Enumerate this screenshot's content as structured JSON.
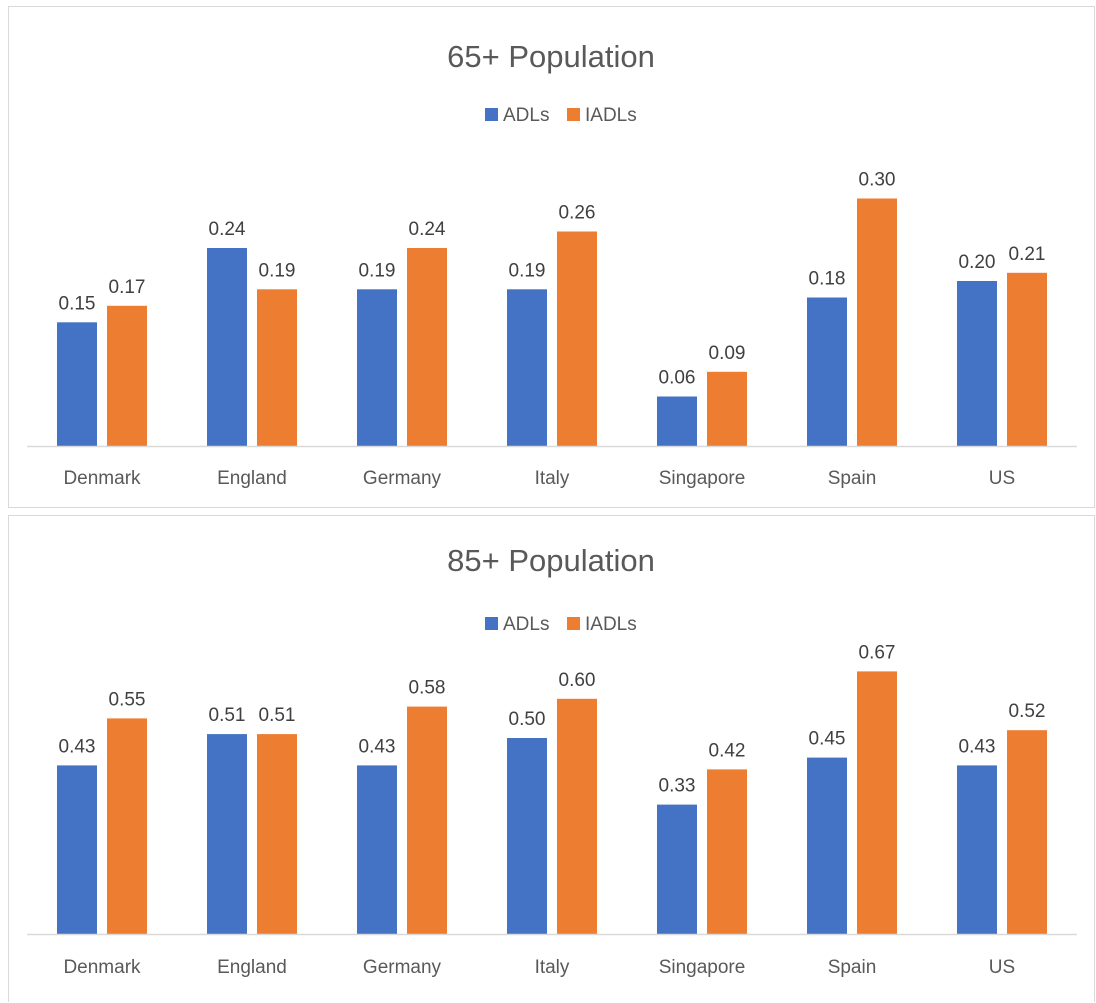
{
  "charts": [
    {
      "title": "65+ Population",
      "legend": [
        "ADLs",
        "IADLs"
      ]
    },
    {
      "title": "85+ Population",
      "legend": [
        "ADLs",
        "IADLs"
      ]
    }
  ],
  "colors": {
    "ADLs": "#4472c4",
    "IADLs": "#ed7d31",
    "axis": "#d9d9d9",
    "text": "#595959"
  },
  "chart_data": [
    {
      "type": "bar",
      "title": "65+ Population",
      "categories": [
        "Denmark",
        "England",
        "Germany",
        "Italy",
        "Singapore",
        "Spain",
        "US"
      ],
      "series": [
        {
          "name": "ADLs",
          "values": [
            0.15,
            0.24,
            0.19,
            0.19,
            0.06,
            0.18,
            0.2
          ]
        },
        {
          "name": "IADLs",
          "values": [
            0.17,
            0.19,
            0.24,
            0.26,
            0.09,
            0.3,
            0.21
          ]
        }
      ],
      "data_labels": true,
      "legend_position": "top",
      "grid": false,
      "ylim": [
        0,
        0.35
      ]
    },
    {
      "type": "bar",
      "title": "85+ Population",
      "categories": [
        "Denmark",
        "England",
        "Germany",
        "Italy",
        "Singapore",
        "Spain",
        "US"
      ],
      "series": [
        {
          "name": "ADLs",
          "values": [
            0.43,
            0.51,
            0.43,
            0.5,
            0.33,
            0.45,
            0.43
          ]
        },
        {
          "name": "IADLs",
          "values": [
            0.55,
            0.51,
            0.58,
            0.6,
            0.42,
            0.67,
            0.52
          ]
        }
      ],
      "data_labels": true,
      "legend_position": "top",
      "grid": false,
      "ylim": [
        0,
        0.78
      ]
    }
  ]
}
